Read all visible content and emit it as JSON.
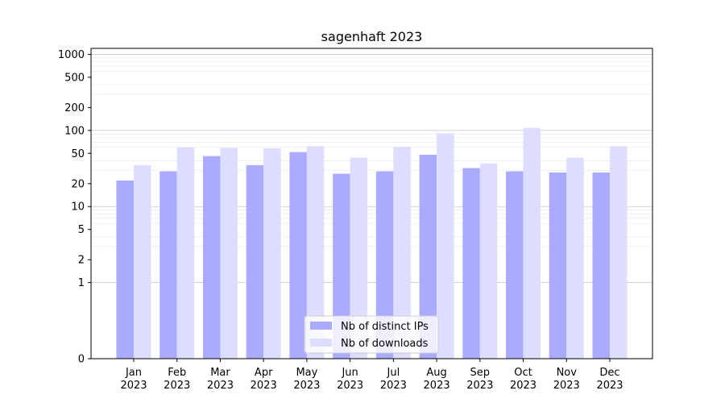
{
  "chart_data": {
    "type": "bar",
    "title": "sagenhaft 2023",
    "xlabel": "",
    "ylabel": "",
    "yscale": "symlog",
    "ylim": [
      0,
      1200
    ],
    "yticks": [
      0,
      1,
      2,
      5,
      10,
      20,
      50,
      100,
      200,
      500,
      1000
    ],
    "ytick_labels": [
      "0",
      "1",
      "2",
      "5",
      "10",
      "20",
      "50",
      "100",
      "200",
      "500",
      "1000"
    ],
    "categories": [
      [
        "Jan",
        "2023"
      ],
      [
        "Feb",
        "2023"
      ],
      [
        "Mar",
        "2023"
      ],
      [
        "Apr",
        "2023"
      ],
      [
        "May",
        "2023"
      ],
      [
        "Jun",
        "2023"
      ],
      [
        "Jul",
        "2023"
      ],
      [
        "Aug",
        "2023"
      ],
      [
        "Sep",
        "2023"
      ],
      [
        "Oct",
        "2023"
      ],
      [
        "Nov",
        "2023"
      ],
      [
        "Dec",
        "2023"
      ]
    ],
    "series": [
      {
        "name": "Nb of distinct IPs",
        "color": "#aaaaff",
        "values": [
          22,
          29,
          46,
          35,
          52,
          27,
          29,
          48,
          32,
          29,
          28,
          28
        ]
      },
      {
        "name": "Nb of downloads",
        "color": "#ddddff",
        "values": [
          35,
          60,
          59,
          58,
          62,
          44,
          61,
          92,
          37,
          108,
          44,
          62
        ]
      }
    ],
    "grid": true,
    "legend_position": "bottom-center"
  }
}
